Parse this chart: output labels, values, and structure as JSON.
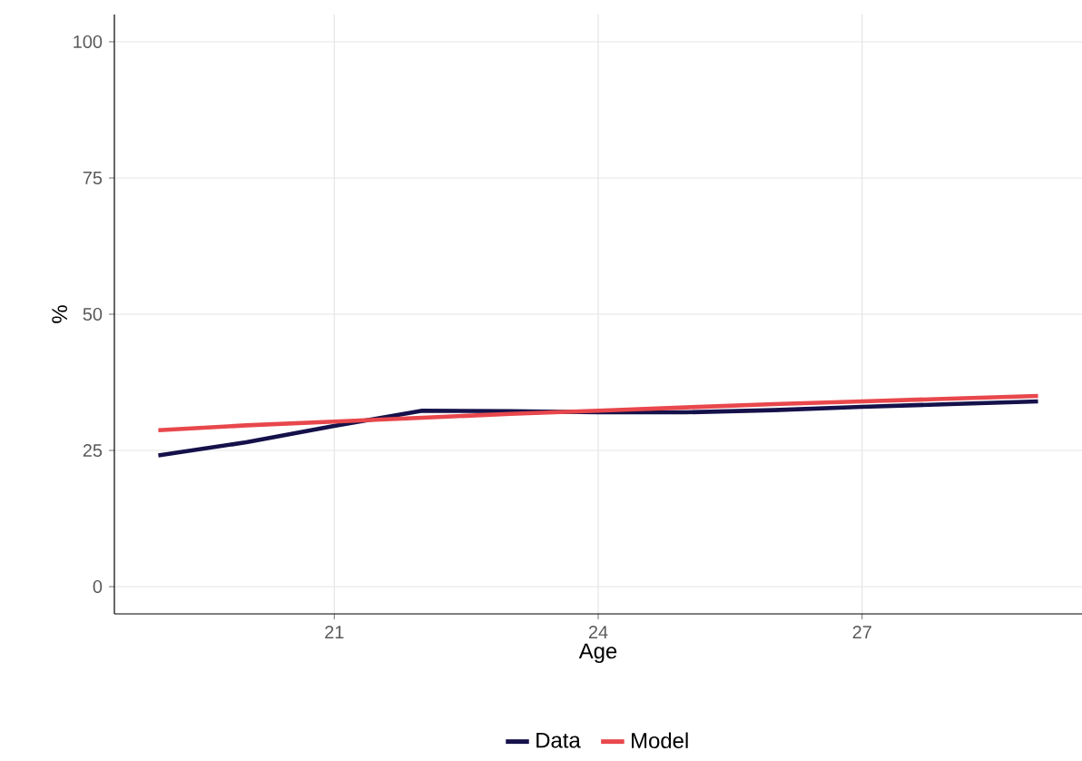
{
  "chart_data": {
    "type": "line",
    "xlabel": "Age",
    "ylabel": "%",
    "x": [
      19,
      20,
      21,
      22,
      23,
      24,
      25,
      26,
      27,
      28,
      29
    ],
    "series": [
      {
        "name": "Data",
        "color": "#15114a",
        "values": [
          24.1,
          26.5,
          29.5,
          32.3,
          32.2,
          32.0,
          32.0,
          32.4,
          33.0,
          33.5,
          34.0
        ]
      },
      {
        "name": "Model",
        "color": "#e8474c",
        "values": [
          28.7,
          29.6,
          30.3,
          31.0,
          31.7,
          32.3,
          32.9,
          33.5,
          34.0,
          34.5,
          35.0
        ]
      }
    ],
    "xlim": [
      18.5,
      29.5
    ],
    "ylim": [
      -5,
      105
    ],
    "xticks": [
      21,
      24,
      27
    ],
    "yticks": [
      0,
      25,
      50,
      75,
      100
    ],
    "grid": true,
    "legend": "bottom",
    "marker": "none",
    "line_style": "solid"
  }
}
